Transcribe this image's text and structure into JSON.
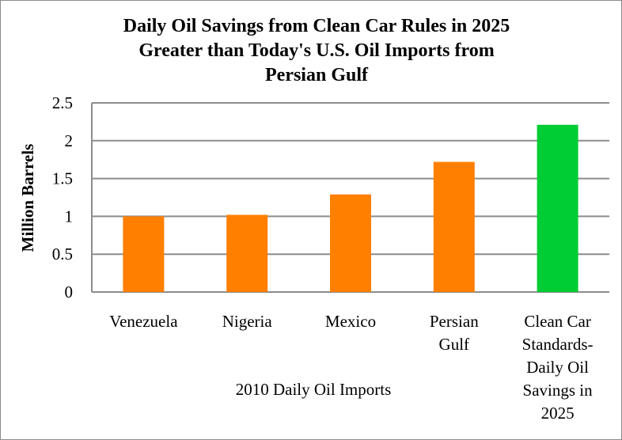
{
  "chart_data": {
    "type": "bar",
    "title_lines": [
      "Daily Oil Savings from Clean Car Rules in 2025",
      "Greater than Today's U.S. Oil Imports from",
      "Persian Gulf"
    ],
    "ylabel": "Million Barrels",
    "xlabel": "2010 Daily Oil Imports",
    "ylim": [
      0,
      2.5
    ],
    "yticks": [
      "0",
      "0.5",
      "1",
      "1.5",
      "2",
      "2.5"
    ],
    "grid": true,
    "categories": [
      [
        "Venezuela"
      ],
      [
        "Nigeria"
      ],
      [
        "Mexico"
      ],
      [
        "Persian",
        "Gulf"
      ],
      [
        "Clean Car",
        "Standards-",
        "Daily Oil",
        "Savings in",
        "2025"
      ]
    ],
    "values": [
      1.0,
      1.02,
      1.29,
      1.72,
      2.21
    ],
    "colors": [
      "#ff7f00",
      "#ff7f00",
      "#ff7f00",
      "#ff7f00",
      "#00cc33"
    ]
  }
}
